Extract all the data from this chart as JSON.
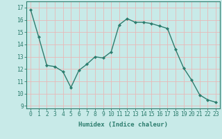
{
  "x": [
    0,
    1,
    2,
    3,
    4,
    5,
    6,
    7,
    8,
    9,
    10,
    11,
    12,
    13,
    14,
    15,
    16,
    17,
    18,
    19,
    20,
    21,
    22,
    23
  ],
  "y": [
    16.8,
    14.6,
    12.3,
    12.2,
    11.8,
    10.5,
    11.9,
    12.4,
    13.0,
    12.9,
    13.4,
    15.6,
    16.1,
    15.8,
    15.8,
    15.7,
    15.5,
    15.3,
    13.6,
    12.1,
    11.1,
    9.9,
    9.5,
    9.3
  ],
  "line_color": "#2d7d6e",
  "marker_color": "#2d7d6e",
  "bg_color": "#c8eae8",
  "grid_color": "#e8b8b8",
  "xlabel": "Humidex (Indice chaleur)",
  "xlim": [
    -0.5,
    23.5
  ],
  "ylim": [
    8.8,
    17.5
  ],
  "yticks": [
    9,
    10,
    11,
    12,
    13,
    14,
    15,
    16,
    17
  ],
  "xticks": [
    0,
    1,
    2,
    3,
    4,
    5,
    6,
    7,
    8,
    9,
    10,
    11,
    12,
    13,
    14,
    15,
    16,
    17,
    18,
    19,
    20,
    21,
    22,
    23
  ],
  "label_fontsize": 6.5,
  "tick_fontsize": 5.8
}
